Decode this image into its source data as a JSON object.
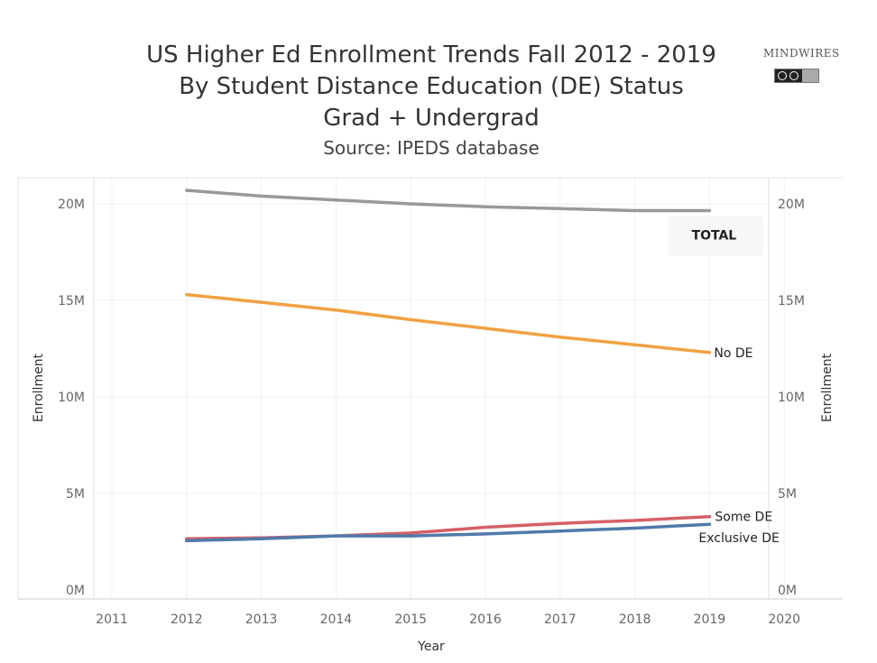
{
  "header": {
    "title_line1": "US Higher Ed Enrollment Trends Fall 2012 - 2019",
    "title_line2": "By Student Distance Education (DE) Status",
    "title_line3": "Grad + Undergrad",
    "source": "Source: IPEDS database"
  },
  "logo": {
    "text": "MINDWIRES",
    "icon": "creative-commons-badge"
  },
  "chart_data": {
    "type": "line",
    "xlabel": "Year",
    "ylabel": "Enrollment",
    "xlim": [
      2011,
      2020
    ],
    "ylim": [
      0,
      21500000
    ],
    "x_ticks": [
      "2011",
      "2012",
      "2013",
      "2014",
      "2015",
      "2016",
      "2017",
      "2018",
      "2019",
      "2020"
    ],
    "y_ticks": [
      {
        "value": 0,
        "label": "0M"
      },
      {
        "value": 5000000,
        "label": "5M"
      },
      {
        "value": 10000000,
        "label": "10M"
      },
      {
        "value": 15000000,
        "label": "15M"
      },
      {
        "value": 20000000,
        "label": "20M"
      }
    ],
    "grid": true,
    "x": [
      2012,
      2013,
      2014,
      2015,
      2016,
      2017,
      2018,
      2019
    ],
    "series": [
      {
        "name": "TOTAL",
        "color": "#999999",
        "label_style": "box",
        "values": [
          20700000,
          20400000,
          20200000,
          20000000,
          19850000,
          19750000,
          19650000,
          19650000
        ]
      },
      {
        "name": "No DE",
        "color": "#f0a142",
        "label_style": "plain",
        "values": [
          15300000,
          14900000,
          14500000,
          14000000,
          13550000,
          13100000,
          12700000,
          12300000
        ]
      },
      {
        "name": "Some DE",
        "color": "#d65f67",
        "label_style": "plain",
        "values": [
          2650000,
          2700000,
          2800000,
          2950000,
          3250000,
          3450000,
          3600000,
          3800000
        ]
      },
      {
        "name": "Exclusive DE",
        "color": "#4f7aaa",
        "label_style": "plain",
        "values": [
          2550000,
          2650000,
          2800000,
          2800000,
          2900000,
          3050000,
          3200000,
          3400000
        ]
      }
    ]
  }
}
